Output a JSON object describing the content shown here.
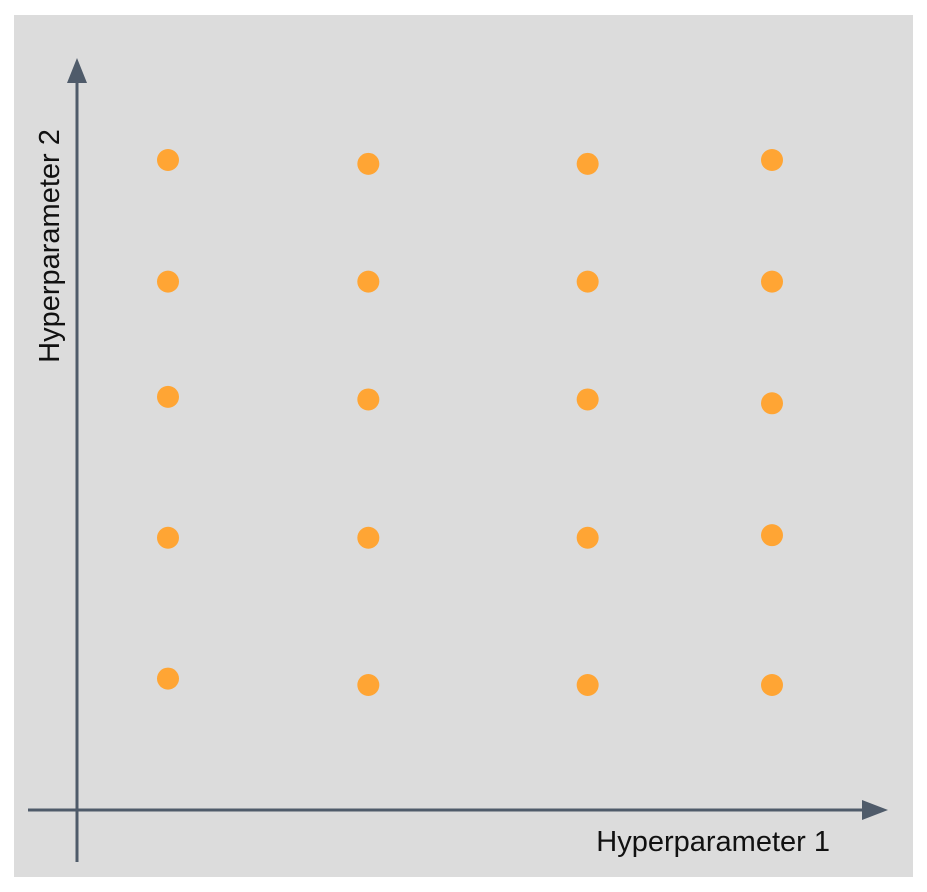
{
  "chart_data": {
    "type": "scatter",
    "title": "",
    "xlabel": "Hyperparameter 1",
    "ylabel": "Hyperparameter 2",
    "xlim": [
      0,
      5
    ],
    "ylim": [
      0,
      6
    ],
    "grid": false,
    "point_color": "#ffa534",
    "axis_color": "#4f5b6a",
    "background": "#dcdcdc",
    "points": [
      {
        "x": 1,
        "y": 5.1
      },
      {
        "x": 2,
        "y": 5.07
      },
      {
        "x": 3,
        "y": 5.07
      },
      {
        "x": 4,
        "y": 5.1
      },
      {
        "x": 1,
        "y": 4.15
      },
      {
        "x": 2,
        "y": 4.15
      },
      {
        "x": 3,
        "y": 4.15
      },
      {
        "x": 4,
        "y": 4.15
      },
      {
        "x": 1,
        "y": 3.25
      },
      {
        "x": 2,
        "y": 3.23
      },
      {
        "x": 3,
        "y": 3.23
      },
      {
        "x": 4,
        "y": 3.2
      },
      {
        "x": 1,
        "y": 2.15
      },
      {
        "x": 2,
        "y": 2.15
      },
      {
        "x": 3,
        "y": 2.15
      },
      {
        "x": 4,
        "y": 2.17
      },
      {
        "x": 1,
        "y": 1.05
      },
      {
        "x": 2,
        "y": 1.0
      },
      {
        "x": 3,
        "y": 1.0
      },
      {
        "x": 4,
        "y": 1.0
      }
    ]
  }
}
